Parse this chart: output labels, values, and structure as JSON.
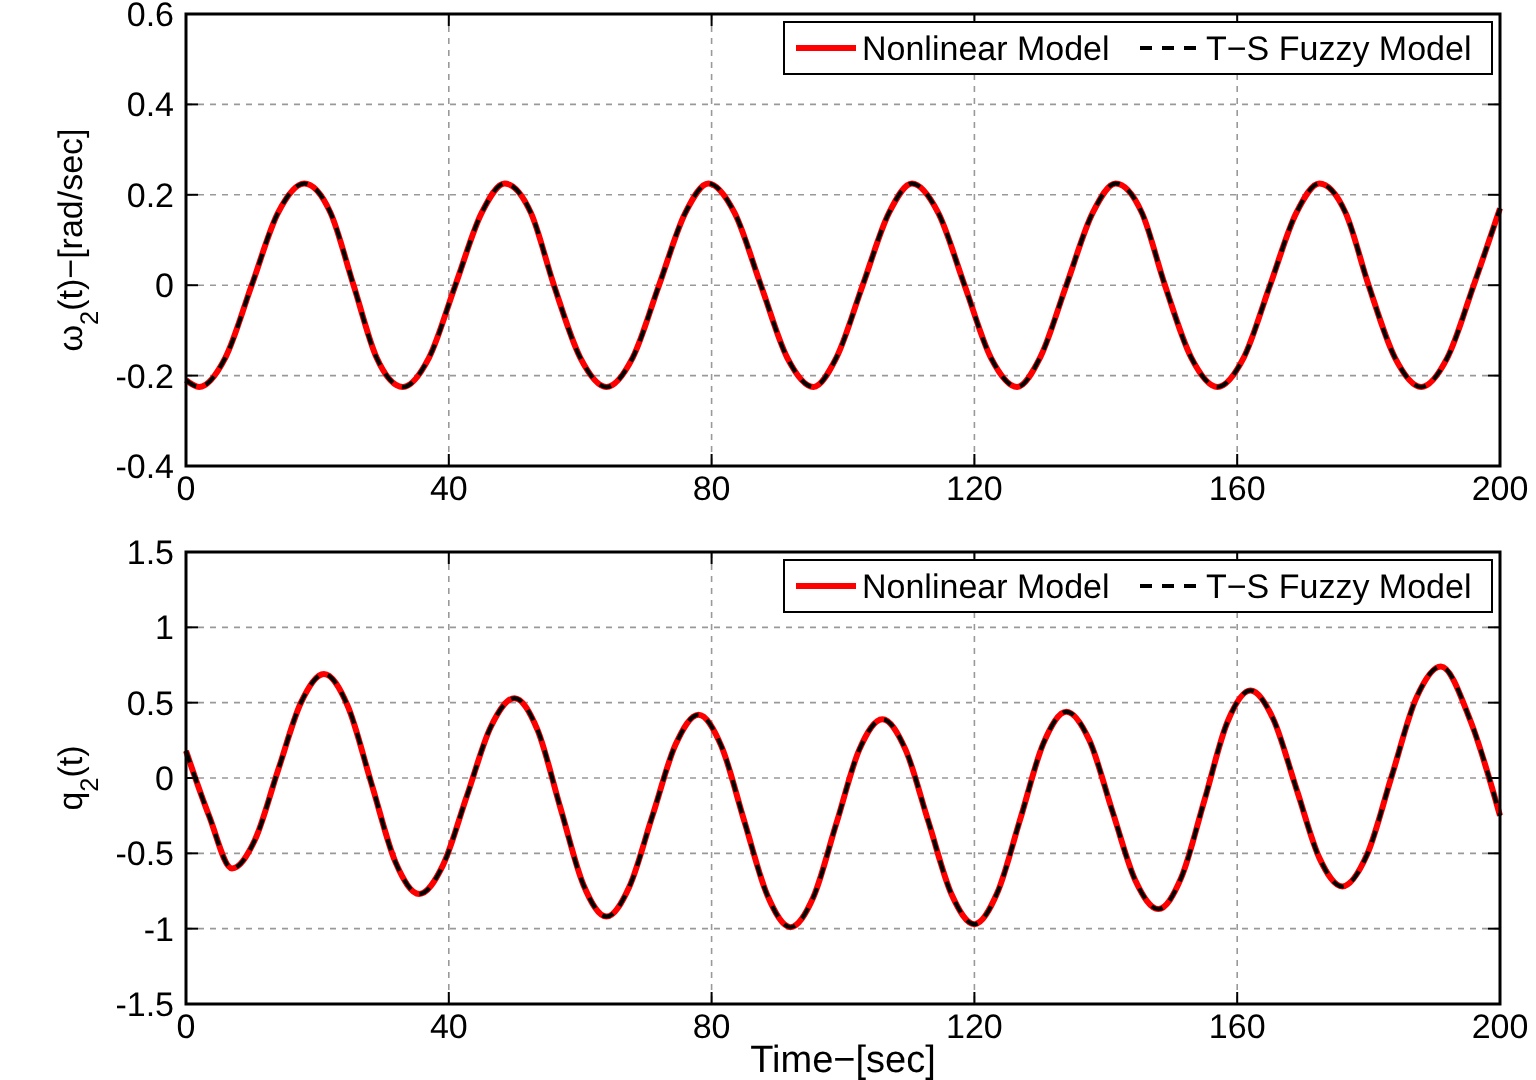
{
  "chart_data": [
    {
      "type": "line",
      "ylabel": "ω$_{2}$(t)−[rad/sec]",
      "xlim": [
        0,
        200
      ],
      "xticks": [
        0,
        40,
        80,
        120,
        160,
        200
      ],
      "ylim": [
        -0.4,
        0.6
      ],
      "yticks": [
        -0.4,
        -0.2,
        0,
        0.2,
        0.4,
        0.6
      ],
      "grid": true,
      "legend": "top right",
      "x": [
        0,
        2,
        6,
        10,
        14,
        18,
        22,
        25.5,
        29,
        33,
        37,
        41,
        45,
        48.5,
        52.5,
        56,
        60,
        64,
        68,
        72,
        76,
        79.5,
        83.5,
        87.5,
        91.5,
        95.5,
        99,
        103,
        107,
        110.5,
        114.5,
        118.5,
        122.5,
        126.5,
        130,
        134,
        138,
        141.5,
        145.5,
        149,
        153,
        157,
        161,
        165,
        169,
        172.5,
        176.5,
        180,
        184,
        188,
        192,
        196,
        200
      ],
      "series": [
        {
          "name": "Nonlinear Model",
          "color": "#ff0000",
          "line_style": "solid",
          "values": [
            -0.21,
            -0.225,
            -0.16,
            0,
            0.16,
            0.225,
            0.16,
            0,
            -0.16,
            -0.225,
            -0.16,
            0,
            0.16,
            0.225,
            0.16,
            0,
            -0.16,
            -0.225,
            -0.16,
            0,
            0.16,
            0.225,
            0.16,
            0,
            -0.16,
            -0.225,
            -0.16,
            0,
            0.16,
            0.225,
            0.16,
            0,
            -0.16,
            -0.225,
            -0.16,
            0,
            0.16,
            0.225,
            0.16,
            0,
            -0.16,
            -0.225,
            -0.16,
            0,
            0.16,
            0.225,
            0.16,
            0,
            -0.16,
            -0.225,
            -0.16,
            0,
            0.17
          ]
        },
        {
          "name": "T−S Fuzzy Model",
          "color": "#000000",
          "line_style": "dashed",
          "values": [
            -0.21,
            -0.225,
            -0.16,
            0,
            0.16,
            0.225,
            0.16,
            0,
            -0.16,
            -0.225,
            -0.16,
            0,
            0.16,
            0.225,
            0.16,
            0,
            -0.16,
            -0.225,
            -0.16,
            0,
            0.16,
            0.225,
            0.16,
            0,
            -0.16,
            -0.225,
            -0.16,
            0,
            0.16,
            0.225,
            0.16,
            0,
            -0.16,
            -0.225,
            -0.16,
            0,
            0.16,
            0.225,
            0.16,
            0,
            -0.16,
            -0.225,
            -0.16,
            0,
            0.16,
            0.225,
            0.16,
            0,
            -0.16,
            -0.225,
            -0.16,
            0,
            0.17
          ]
        }
      ]
    },
    {
      "type": "line",
      "xlabel": "Time−[sec]",
      "ylabel": "q$_{2}$(t)",
      "xlim": [
        0,
        200
      ],
      "xticks": [
        0,
        40,
        80,
        120,
        160,
        200
      ],
      "ylim": [
        -1.5,
        1.5
      ],
      "yticks": [
        -1.5,
        -1,
        -0.5,
        0,
        0.5,
        1,
        1.5
      ],
      "grid": true,
      "legend": "top right",
      "x": [
        0,
        3.5,
        7,
        10.5,
        14,
        17.5,
        21,
        24.6,
        28.25,
        31.9,
        35.5,
        39.1,
        42.75,
        46.4,
        50,
        53.5,
        57,
        60.5,
        64,
        67.5,
        71,
        74.5,
        78,
        81.5,
        85,
        88.5,
        92,
        95.5,
        99,
        102.5,
        106,
        109.5,
        113,
        116.5,
        120,
        123.5,
        127,
        130.5,
        134,
        137.5,
        141,
        144.5,
        148,
        151.5,
        155,
        158.5,
        162,
        165.5,
        169,
        172.5,
        176,
        179.75,
        183.5,
        187.25,
        191,
        195.5,
        200
      ],
      "series": [
        {
          "name": "Nonlinear Model",
          "color": "#ff0000",
          "line_style": "solid",
          "values": [
            0.18,
            -0.25,
            -0.6,
            -0.41,
            0.05,
            0.5,
            0.69,
            0.48,
            -0.04,
            -0.56,
            -0.77,
            -0.58,
            -0.12,
            0.34,
            0.53,
            0.32,
            -0.2,
            -0.71,
            -0.92,
            -0.72,
            -0.25,
            0.22,
            0.42,
            0.21,
            -0.29,
            -0.78,
            -0.99,
            -0.79,
            -0.3,
            0.19,
            0.39,
            0.19,
            -0.29,
            -0.77,
            -0.97,
            -0.76,
            -0.27,
            0.23,
            0.44,
            0.25,
            -0.22,
            -0.68,
            -0.87,
            -0.66,
            -0.15,
            0.37,
            0.58,
            0.39,
            -0.07,
            -0.53,
            -0.72,
            -0.51,
            0.01,
            0.53,
            0.74,
            0.38,
            -0.25
          ]
        },
        {
          "name": "T−S Fuzzy Model",
          "color": "#000000",
          "line_style": "dashed",
          "values": [
            0.18,
            -0.25,
            -0.6,
            -0.41,
            0.05,
            0.5,
            0.69,
            0.48,
            -0.04,
            -0.56,
            -0.77,
            -0.58,
            -0.12,
            0.34,
            0.53,
            0.32,
            -0.2,
            -0.71,
            -0.92,
            -0.72,
            -0.25,
            0.22,
            0.42,
            0.21,
            -0.29,
            -0.78,
            -0.99,
            -0.79,
            -0.3,
            0.19,
            0.39,
            0.19,
            -0.29,
            -0.77,
            -0.97,
            -0.76,
            -0.27,
            0.23,
            0.44,
            0.25,
            -0.22,
            -0.68,
            -0.87,
            -0.66,
            -0.15,
            0.37,
            0.58,
            0.39,
            -0.07,
            -0.53,
            -0.72,
            -0.51,
            0.01,
            0.53,
            0.74,
            0.38,
            -0.25
          ]
        }
      ]
    }
  ]
}
